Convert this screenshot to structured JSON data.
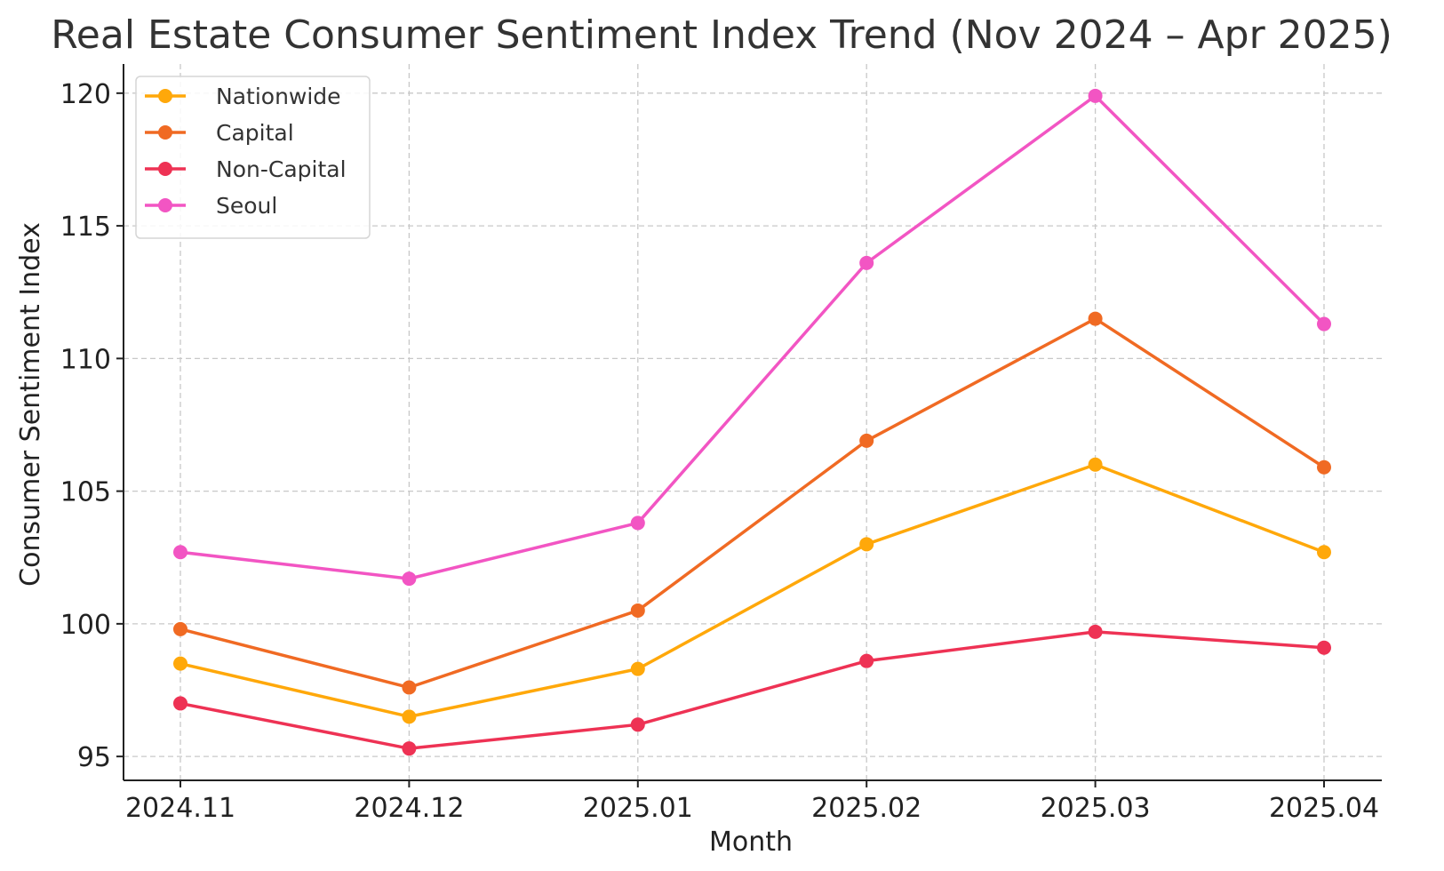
{
  "chart_data": {
    "type": "line",
    "title": "Real Estate Consumer Sentiment Index Trend (Nov 2024 – Apr 2025)",
    "xlabel": "Month",
    "ylabel": "Consumer Sentiment Index",
    "categories": [
      "2024.11",
      "2024.12",
      "2025.01",
      "2025.02",
      "2025.03",
      "2025.04"
    ],
    "ylim": [
      94.1,
      121.1
    ],
    "yticks": [
      95,
      100,
      105,
      110,
      115,
      120
    ],
    "grid": true,
    "legend_position": "top-left",
    "series": [
      {
        "name": "Nationwide",
        "color": "#FFA80A",
        "values": [
          98.5,
          96.5,
          98.3,
          103.0,
          106.0,
          102.7
        ]
      },
      {
        "name": "Capital",
        "color": "#F06A23",
        "values": [
          99.8,
          97.6,
          100.5,
          106.9,
          111.5,
          105.9
        ]
      },
      {
        "name": "Non-Capital",
        "color": "#EE3254",
        "values": [
          97.0,
          95.3,
          96.2,
          98.6,
          99.7,
          99.1
        ]
      },
      {
        "name": "Seoul",
        "color": "#F255C3",
        "values": [
          102.7,
          101.7,
          103.8,
          113.6,
          119.9,
          111.3
        ]
      }
    ]
  }
}
